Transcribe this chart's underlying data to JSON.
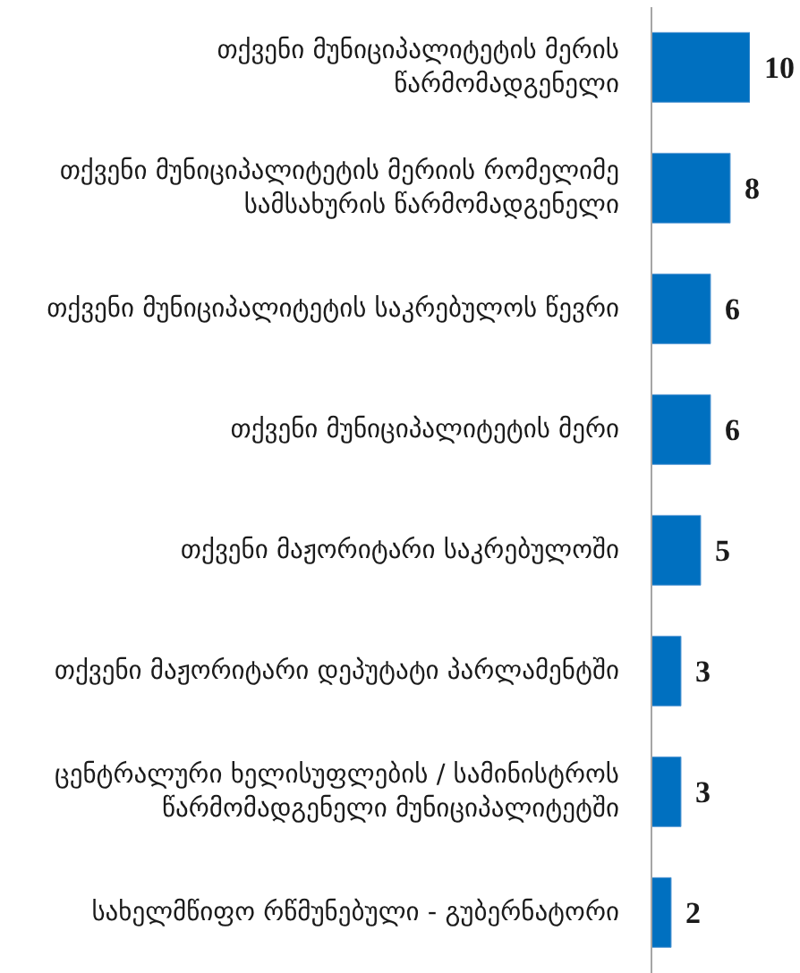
{
  "chart_data": {
    "type": "bar",
    "orientation": "horizontal",
    "categories": [
      "თქვენი მუნიციპალიტეტის მერის წარმომადგენელი",
      "თქვენი მუნიციპალიტეტის მერიის რომელიმე სამსახურის წარმომადგენელი",
      "თქვენი მუნიციპალიტეტის საკრებულოს წევრი",
      "თქვენი მუნიციპალიტეტის მერი",
      "თქვენი მაჟორიტარი საკრებულოში",
      "თქვენი მაჟორიტარი დეპუტატი პარლამენტში",
      "ცენტრალური ხელისუფლების / სამინისტროს წარმომადგენელი მუნიციპალიტეტში",
      "სახელმწიფო რწმუნებული - გუბერნატორი"
    ],
    "values": [
      10,
      8,
      6,
      6,
      5,
      3,
      3,
      2
    ],
    "color": "#0070c0",
    "data_labels": true,
    "tick_labels": "y"
  }
}
